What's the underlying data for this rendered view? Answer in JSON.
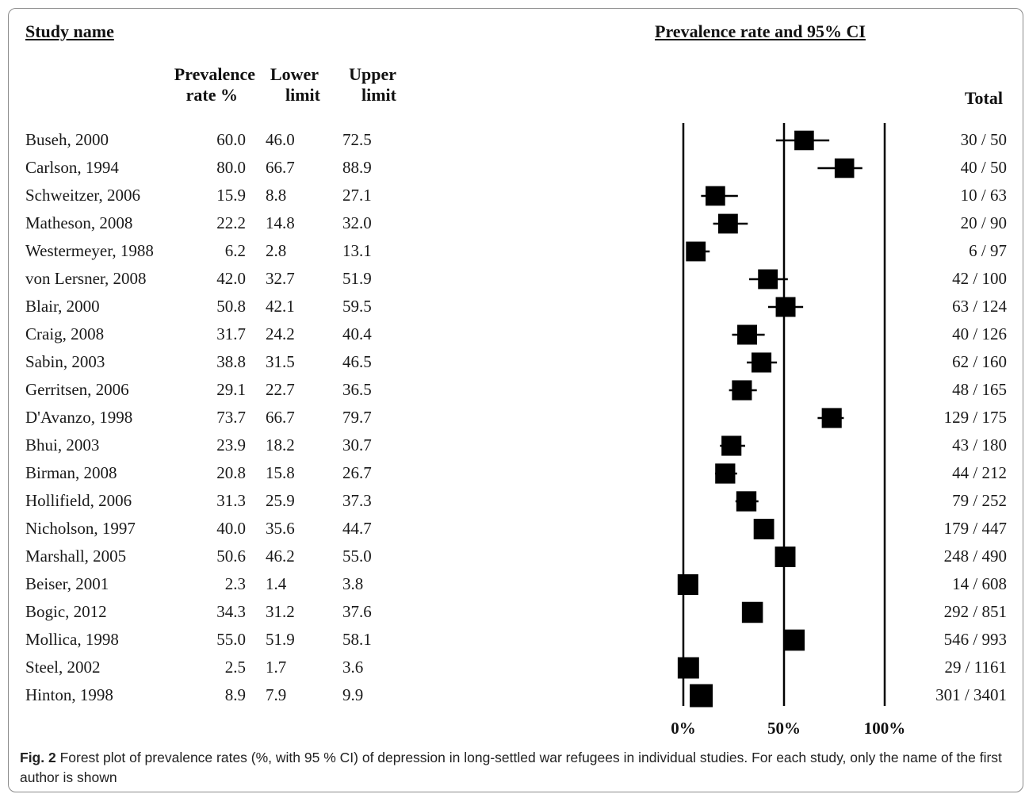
{
  "headers": {
    "study_name": "Study name",
    "plot_title": "Prevalence rate and 95% CI",
    "rate_line1": "Prevalence",
    "rate_line2": "rate %",
    "lower_line1": "Lower",
    "lower_line2": "limit",
    "upper_line1": "Upper",
    "upper_line2": "limit",
    "total": "Total"
  },
  "caption": {
    "label": "Fig. 2",
    "text": " Forest plot of prevalence rates (%, with 95 % CI) of depression in long-settled war refugees in individual studies. For each study, only the name of the first author is shown"
  },
  "chart_data": {
    "type": "forest",
    "xlim": [
      0,
      100
    ],
    "x_ticks": [
      "0%",
      "50%",
      "100%"
    ],
    "reference_lines": [
      0,
      50,
      100
    ],
    "marker_color": "#000000",
    "studies": [
      {
        "name": "Buseh, 2000",
        "rate": "60.0",
        "lower": "46.0",
        "upper": "72.5",
        "total": "30 / 50",
        "weight": 50
      },
      {
        "name": "Carlson, 1994",
        "rate": "80.0",
        "lower": "66.7",
        "upper": "88.9",
        "total": "40 / 50",
        "weight": 50
      },
      {
        "name": "Schweitzer, 2006",
        "rate": "15.9",
        "lower": "8.8",
        "upper": "27.1",
        "total": "10 / 63",
        "weight": 63
      },
      {
        "name": "Matheson, 2008",
        "rate": "22.2",
        "lower": "14.8",
        "upper": "32.0",
        "total": "20 / 90",
        "weight": 90
      },
      {
        "name": "Westermeyer, 1988",
        "rate": "6.2",
        "lower": "2.8",
        "upper": "13.1",
        "total": "6 / 97",
        "weight": 97
      },
      {
        "name": "von Lersner, 2008",
        "rate": "42.0",
        "lower": "32.7",
        "upper": "51.9",
        "total": "42 / 100",
        "weight": 100
      },
      {
        "name": "Blair, 2000",
        "rate": "50.8",
        "lower": "42.1",
        "upper": "59.5",
        "total": "63 / 124",
        "weight": 124
      },
      {
        "name": "Craig, 2008",
        "rate": "31.7",
        "lower": "24.2",
        "upper": "40.4",
        "total": "40 / 126",
        "weight": 126
      },
      {
        "name": "Sabin, 2003",
        "rate": "38.8",
        "lower": "31.5",
        "upper": "46.5",
        "total": "62 / 160",
        "weight": 160
      },
      {
        "name": "Gerritsen, 2006",
        "rate": "29.1",
        "lower": "22.7",
        "upper": "36.5",
        "total": "48 / 165",
        "weight": 165
      },
      {
        "name": "D'Avanzo, 1998",
        "rate": "73.7",
        "lower": "66.7",
        "upper": "79.7",
        "total": "129 / 175",
        "weight": 175
      },
      {
        "name": "Bhui, 2003",
        "rate": "23.9",
        "lower": "18.2",
        "upper": "30.7",
        "total": "43 / 180",
        "weight": 180
      },
      {
        "name": "Birman, 2008",
        "rate": "20.8",
        "lower": "15.8",
        "upper": "26.7",
        "total": "44 / 212",
        "weight": 212
      },
      {
        "name": "Hollifield, 2006",
        "rate": "31.3",
        "lower": "25.9",
        "upper": "37.3",
        "total": "79 / 252",
        "weight": 252
      },
      {
        "name": "Nicholson, 1997",
        "rate": "40.0",
        "lower": "35.6",
        "upper": "44.7",
        "total": "179 / 447",
        "weight": 447
      },
      {
        "name": "Marshall, 2005",
        "rate": "50.6",
        "lower": "46.2",
        "upper": "55.0",
        "total": "248 / 490",
        "weight": 490
      },
      {
        "name": "Beiser, 2001",
        "rate": "2.3",
        "lower": "1.4",
        "upper": "3.8",
        "total": "14 / 608",
        "weight": 608
      },
      {
        "name": "Bogic, 2012",
        "rate": "34.3",
        "lower": "31.2",
        "upper": "37.6",
        "total": "292 / 851",
        "weight": 851
      },
      {
        "name": "Mollica, 1998",
        "rate": "55.0",
        "lower": "51.9",
        "upper": "58.1",
        "total": "546 / 993",
        "weight": 993
      },
      {
        "name": "Steel, 2002",
        "rate": "2.5",
        "lower": "1.7",
        "upper": "3.6",
        "total": "29 / 1161",
        "weight": 1161
      },
      {
        "name": "Hinton, 1998",
        "rate": "8.9",
        "lower": "7.9",
        "upper": "9.9",
        "total": "301 / 3401",
        "weight": 3401
      }
    ]
  }
}
